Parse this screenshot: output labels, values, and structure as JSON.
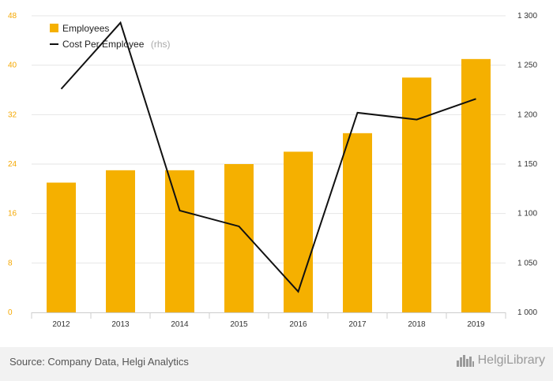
{
  "chart_data": {
    "type": "bar+line",
    "categories": [
      "2012",
      "2013",
      "2014",
      "2015",
      "2016",
      "2017",
      "2018",
      "2019"
    ],
    "series": [
      {
        "name": "Employees",
        "kind": "bar",
        "axis": "left",
        "color": "#f5b000",
        "values": [
          21,
          23,
          23,
          24,
          26,
          29,
          38,
          41
        ]
      },
      {
        "name": "Cost Per Employee",
        "unit_note": "(rhs)",
        "kind": "line",
        "axis": "right",
        "color": "#111111",
        "values": [
          1226,
          1293,
          1103,
          1087,
          1021,
          1202,
          1195,
          1216
        ]
      }
    ],
    "y_left": {
      "ticks": [
        "0",
        "8",
        "16",
        "24",
        "32",
        "40",
        "48"
      ],
      "min": 0,
      "max": 48,
      "color": "#f5a800"
    },
    "y_right": {
      "ticks": [
        "1 000",
        "1 050",
        "1 100",
        "1 150",
        "1 200",
        "1 250",
        "1 300"
      ],
      "min": 1000,
      "max": 1300
    },
    "grid": true,
    "legend_position": "top-left"
  },
  "footer": {
    "source": "Source: Company Data, Helgi Analytics",
    "brand": "HelgiLibrary",
    "brand_icon": "city-skyline-icon"
  }
}
